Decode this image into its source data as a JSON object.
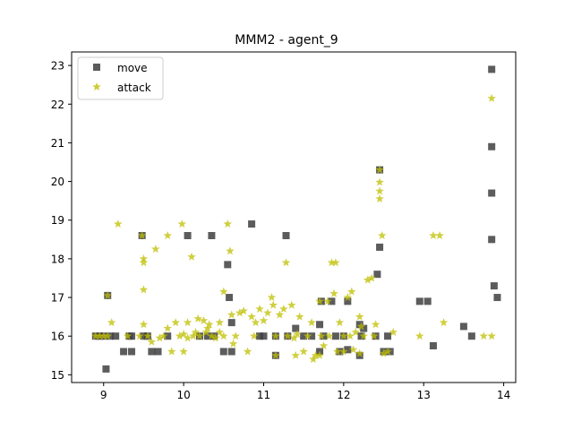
{
  "chart_data": {
    "type": "scatter",
    "title": "MMM2 - agent_9",
    "xlabel": "",
    "ylabel": "",
    "xlim": [
      8.6,
      14.15
    ],
    "ylim": [
      14.8,
      23.35
    ],
    "xticks": [
      "9",
      "10",
      "11",
      "12",
      "13",
      "14"
    ],
    "yticks": [
      "15",
      "16",
      "17",
      "18",
      "19",
      "20",
      "21",
      "22",
      "23"
    ],
    "grid": false,
    "legend_position": "upper-left",
    "series": [
      {
        "name": "move",
        "marker": "square",
        "color": "#404040",
        "points": [
          [
            8.9,
            16.0
          ],
          [
            8.95,
            16.0
          ],
          [
            9.0,
            16.0
          ],
          [
            9.03,
            15.15
          ],
          [
            9.05,
            17.05
          ],
          [
            9.08,
            16.0
          ],
          [
            9.15,
            16.0
          ],
          [
            9.25,
            15.6
          ],
          [
            9.32,
            16.0
          ],
          [
            9.35,
            16.0
          ],
          [
            9.35,
            15.6
          ],
          [
            9.48,
            18.6
          ],
          [
            9.5,
            16.0
          ],
          [
            9.55,
            16.0
          ],
          [
            9.6,
            15.6
          ],
          [
            9.68,
            15.6
          ],
          [
            9.8,
            16.0
          ],
          [
            10.05,
            18.6
          ],
          [
            10.2,
            16.0
          ],
          [
            10.3,
            16.0
          ],
          [
            10.35,
            18.6
          ],
          [
            10.38,
            16.0
          ],
          [
            10.5,
            15.6
          ],
          [
            10.55,
            17.85
          ],
          [
            10.57,
            17.0
          ],
          [
            10.6,
            15.6
          ],
          [
            10.6,
            16.35
          ],
          [
            10.85,
            18.9
          ],
          [
            10.95,
            16.0
          ],
          [
            11.0,
            16.0
          ],
          [
            11.15,
            16.0
          ],
          [
            11.15,
            15.5
          ],
          [
            11.3,
            16.0
          ],
          [
            11.28,
            18.6
          ],
          [
            11.4,
            16.2
          ],
          [
            11.5,
            16.0
          ],
          [
            11.6,
            16.0
          ],
          [
            11.7,
            16.3
          ],
          [
            11.7,
            15.6
          ],
          [
            11.72,
            16.9
          ],
          [
            11.75,
            16.0
          ],
          [
            11.85,
            16.9
          ],
          [
            11.9,
            16.0
          ],
          [
            11.95,
            15.6
          ],
          [
            12.0,
            16.0
          ],
          [
            12.05,
            16.9
          ],
          [
            12.05,
            15.65
          ],
          [
            12.2,
            15.5
          ],
          [
            12.2,
            16.3
          ],
          [
            12.22,
            16.0
          ],
          [
            12.25,
            16.2
          ],
          [
            12.4,
            16.0
          ],
          [
            12.42,
            17.6
          ],
          [
            12.45,
            18.3
          ],
          [
            12.45,
            20.3
          ],
          [
            12.5,
            15.6
          ],
          [
            12.55,
            16.0
          ],
          [
            12.58,
            15.6
          ],
          [
            12.95,
            16.9
          ],
          [
            13.05,
            16.9
          ],
          [
            13.12,
            15.75
          ],
          [
            13.5,
            16.25
          ],
          [
            13.6,
            16.0
          ],
          [
            13.85,
            22.9
          ],
          [
            13.85,
            20.9
          ],
          [
            13.85,
            19.7
          ],
          [
            13.85,
            18.5
          ],
          [
            13.88,
            17.3
          ],
          [
            13.92,
            17.0
          ]
        ]
      },
      {
        "name": "attack",
        "marker": "star",
        "color": "#bfbf00",
        "points": [
          [
            8.9,
            16.0
          ],
          [
            8.95,
            16.0
          ],
          [
            9.0,
            16.0
          ],
          [
            9.05,
            16.0
          ],
          [
            9.05,
            17.05
          ],
          [
            9.1,
            16.35
          ],
          [
            9.18,
            18.9
          ],
          [
            9.3,
            16.0
          ],
          [
            9.45,
            16.0
          ],
          [
            9.48,
            18.6
          ],
          [
            9.5,
            18.0
          ],
          [
            9.5,
            17.9
          ],
          [
            9.5,
            17.2
          ],
          [
            9.5,
            16.3
          ],
          [
            9.55,
            16.0
          ],
          [
            9.6,
            15.85
          ],
          [
            9.65,
            18.25
          ],
          [
            9.7,
            15.95
          ],
          [
            9.75,
            16.0
          ],
          [
            9.8,
            16.2
          ],
          [
            9.8,
            18.6
          ],
          [
            9.85,
            15.6
          ],
          [
            9.9,
            16.35
          ],
          [
            9.95,
            16.0
          ],
          [
            9.98,
            18.9
          ],
          [
            10.0,
            15.6
          ],
          [
            10.0,
            16.05
          ],
          [
            10.05,
            16.35
          ],
          [
            10.05,
            15.95
          ],
          [
            10.1,
            18.05
          ],
          [
            10.12,
            16.0
          ],
          [
            10.15,
            16.1
          ],
          [
            10.18,
            16.45
          ],
          [
            10.2,
            16.0
          ],
          [
            10.25,
            16.4
          ],
          [
            10.28,
            16.1
          ],
          [
            10.3,
            16.2
          ],
          [
            10.32,
            16.3
          ],
          [
            10.35,
            16.0
          ],
          [
            10.4,
            15.95
          ],
          [
            10.45,
            16.35
          ],
          [
            10.45,
            16.1
          ],
          [
            10.5,
            17.15
          ],
          [
            10.5,
            16.0
          ],
          [
            10.55,
            18.9
          ],
          [
            10.58,
            18.2
          ],
          [
            10.6,
            16.55
          ],
          [
            10.62,
            15.8
          ],
          [
            10.65,
            16.0
          ],
          [
            10.7,
            16.6
          ],
          [
            10.75,
            16.65
          ],
          [
            10.8,
            15.6
          ],
          [
            10.85,
            16.5
          ],
          [
            10.88,
            16.0
          ],
          [
            10.9,
            16.35
          ],
          [
            10.95,
            16.7
          ],
          [
            11.0,
            16.4
          ],
          [
            11.05,
            16.6
          ],
          [
            11.1,
            17.0
          ],
          [
            11.12,
            16.8
          ],
          [
            11.15,
            16.0
          ],
          [
            11.15,
            15.5
          ],
          [
            11.2,
            16.55
          ],
          [
            11.25,
            16.7
          ],
          [
            11.28,
            17.9
          ],
          [
            11.3,
            16.0
          ],
          [
            11.35,
            16.8
          ],
          [
            11.38,
            15.95
          ],
          [
            11.4,
            15.5
          ],
          [
            11.42,
            16.05
          ],
          [
            11.45,
            16.5
          ],
          [
            11.5,
            15.6
          ],
          [
            11.55,
            16.0
          ],
          [
            11.6,
            16.35
          ],
          [
            11.62,
            15.4
          ],
          [
            11.65,
            15.5
          ],
          [
            11.7,
            16.9
          ],
          [
            11.7,
            15.5
          ],
          [
            11.72,
            16.0
          ],
          [
            11.75,
            15.75
          ],
          [
            11.8,
            16.9
          ],
          [
            11.82,
            16.0
          ],
          [
            11.85,
            17.9
          ],
          [
            11.88,
            17.1
          ],
          [
            11.9,
            17.9
          ],
          [
            11.92,
            15.6
          ],
          [
            11.95,
            16.35
          ],
          [
            12.0,
            15.6
          ],
          [
            12.0,
            16.0
          ],
          [
            12.05,
            17.0
          ],
          [
            12.08,
            16.0
          ],
          [
            12.1,
            17.15
          ],
          [
            12.12,
            15.65
          ],
          [
            12.15,
            16.1
          ],
          [
            12.2,
            15.55
          ],
          [
            12.2,
            16.5
          ],
          [
            12.22,
            16.25
          ],
          [
            12.25,
            16.0
          ],
          [
            12.3,
            17.45
          ],
          [
            12.35,
            17.5
          ],
          [
            12.38,
            16.0
          ],
          [
            12.4,
            16.3
          ],
          [
            12.45,
            20.3
          ],
          [
            12.45,
            19.98
          ],
          [
            12.45,
            19.75
          ],
          [
            12.45,
            19.55
          ],
          [
            12.48,
            18.6
          ],
          [
            12.5,
            15.55
          ],
          [
            12.55,
            15.6
          ],
          [
            12.62,
            16.1
          ],
          [
            12.95,
            16.0
          ],
          [
            13.12,
            18.6
          ],
          [
            13.2,
            18.6
          ],
          [
            13.25,
            16.35
          ],
          [
            13.75,
            16.0
          ],
          [
            13.85,
            22.15
          ],
          [
            13.85,
            16.0
          ]
        ]
      }
    ]
  }
}
